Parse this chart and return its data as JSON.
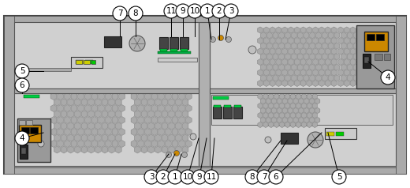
{
  "fig_width": 5.2,
  "fig_height": 2.38,
  "dpi": 100,
  "bg": "#ffffff",
  "callout_r": 9,
  "font_size": 7.5,
  "callouts": [
    [
      "7",
      152,
      17,
      152,
      46
    ],
    [
      "8",
      172,
      17,
      172,
      46
    ],
    [
      "11",
      217,
      14,
      217,
      46
    ],
    [
      "9",
      232,
      14,
      232,
      46
    ],
    [
      "10",
      247,
      14,
      247,
      46
    ],
    [
      "1",
      263,
      14,
      268,
      50
    ],
    [
      "2",
      278,
      14,
      278,
      50
    ],
    [
      "3",
      293,
      14,
      286,
      50
    ],
    [
      "5",
      28,
      90,
      55,
      90
    ],
    [
      "6",
      28,
      108,
      28,
      118
    ],
    [
      "4",
      28,
      175,
      55,
      168
    ],
    [
      "4",
      492,
      98,
      467,
      78
    ],
    [
      "3",
      192,
      224,
      214,
      195
    ],
    [
      "2",
      207,
      224,
      222,
      195
    ],
    [
      "1",
      222,
      224,
      230,
      195
    ],
    [
      "10",
      238,
      224,
      252,
      175
    ],
    [
      "9",
      253,
      224,
      262,
      175
    ],
    [
      "11",
      268,
      224,
      272,
      175
    ],
    [
      "8",
      320,
      224,
      356,
      178
    ],
    [
      "7",
      335,
      224,
      364,
      178
    ],
    [
      "6",
      350,
      224,
      408,
      168
    ],
    [
      "5",
      430,
      224,
      416,
      168
    ]
  ]
}
